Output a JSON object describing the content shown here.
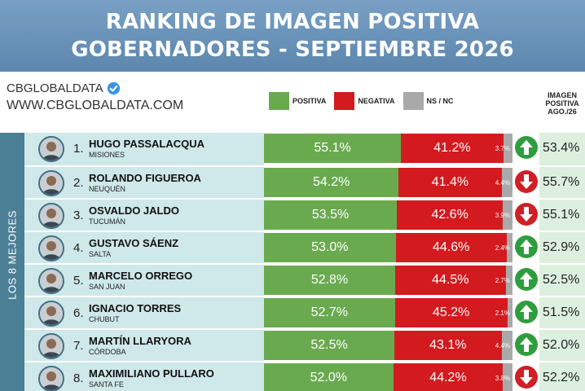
{
  "header": {
    "title_line1": "RANKING DE IMAGEN POSITIVA",
    "title_line2": "GOBERNADORES - SEPTIEMBRE 2026"
  },
  "brand": {
    "name": "CBGLOBALDATA",
    "url": "WWW.CBGLOBALDATA.COM",
    "verified_icon": "verified-badge-icon"
  },
  "legend": {
    "positive": "POSITIVA",
    "negative": "NEGATIVA",
    "nsnc": "NS / NC"
  },
  "prev_header": {
    "line1": "IMAGEN",
    "line2": "POSITIVA",
    "line3": "AGO./26"
  },
  "side_label": "LOS 8 MEJORES",
  "colors": {
    "positive": "#6aaa4f",
    "negative": "#d31a1f",
    "nsnc": "#a9a9a9",
    "trend_up": "#2e9d3e",
    "trend_down": "#d01f25"
  },
  "chart_data": {
    "type": "bar",
    "stacked": true,
    "orientation": "horizontal",
    "title": "RANKING DE IMAGEN POSITIVA GOBERNADORES - SEPTIEMBRE 2026",
    "categories": [
      "HUGO PASSALACQUA",
      "ROLANDO FIGUEROA",
      "OSVALDO JALDO",
      "GUSTAVO SÁENZ",
      "MARCELO ORREGO",
      "IGNACIO TORRES",
      "MARTÍN LLARYORA",
      "MAXIMILIANO PULLARO"
    ],
    "series": [
      {
        "name": "POSITIVA",
        "values": [
          55.1,
          54.2,
          53.5,
          53.0,
          52.8,
          52.7,
          52.5,
          52.0
        ]
      },
      {
        "name": "NEGATIVA",
        "values": [
          41.2,
          41.4,
          42.6,
          44.6,
          44.5,
          45.2,
          43.1,
          44.2
        ]
      },
      {
        "name": "NS / NC",
        "values": [
          3.7,
          4.4,
          3.9,
          2.4,
          2.7,
          2.1,
          4.4,
          3.8
        ]
      }
    ],
    "rows": [
      {
        "rank": "1.",
        "name": "HUGO PASSALACQUA",
        "province": "MISIONES",
        "positive": 55.1,
        "negative": 41.2,
        "nsnc": 3.7,
        "positive_label": "55.1%",
        "negative_label": "41.2%",
        "nsnc_label": "3.7%",
        "trend": "up",
        "prev_label": "53.4%",
        "prev": 53.4
      },
      {
        "rank": "2.",
        "name": "ROLANDO FIGUEROA",
        "province": "NEUQUÉN",
        "positive": 54.2,
        "negative": 41.4,
        "nsnc": 4.4,
        "positive_label": "54.2%",
        "negative_label": "41.4%",
        "nsnc_label": "4.4%",
        "trend": "down",
        "prev_label": "55.7%",
        "prev": 55.7
      },
      {
        "rank": "3.",
        "name": "OSVALDO JALDO",
        "province": "TUCUMÁN",
        "positive": 53.5,
        "negative": 42.6,
        "nsnc": 3.9,
        "positive_label": "53.5%",
        "negative_label": "42.6%",
        "nsnc_label": "3.9%",
        "trend": "down",
        "prev_label": "55.1%",
        "prev": 55.1
      },
      {
        "rank": "4.",
        "name": "GUSTAVO SÁENZ",
        "province": "SALTA",
        "positive": 53.0,
        "negative": 44.6,
        "nsnc": 2.4,
        "positive_label": "53.0%",
        "negative_label": "44.6%",
        "nsnc_label": "2.4%",
        "trend": "up",
        "prev_label": "52.9%",
        "prev": 52.9
      },
      {
        "rank": "5.",
        "name": "MARCELO ORREGO",
        "province": "SAN JUAN",
        "positive": 52.8,
        "negative": 44.5,
        "nsnc": 2.7,
        "positive_label": "52.8%",
        "negative_label": "44.5%",
        "nsnc_label": "2.7%",
        "trend": "up",
        "prev_label": "52.5%",
        "prev": 52.5
      },
      {
        "rank": "6.",
        "name": "IGNACIO TORRES",
        "province": "CHUBUT",
        "positive": 52.7,
        "negative": 45.2,
        "nsnc": 2.1,
        "positive_label": "52.7%",
        "negative_label": "45.2%",
        "nsnc_label": "2.1%",
        "trend": "up",
        "prev_label": "51.5%",
        "prev": 51.5
      },
      {
        "rank": "7.",
        "name": "MARTÍN LLARYORA",
        "province": "CÓRDOBA",
        "positive": 52.5,
        "negative": 43.1,
        "nsnc": 4.4,
        "positive_label": "52.5%",
        "negative_label": "43.1%",
        "nsnc_label": "4.4%",
        "trend": "up",
        "prev_label": "52.0%",
        "prev": 52.0
      },
      {
        "rank": "8.",
        "name": "MAXIMILIANO PULLARO",
        "province": "SANTA FE",
        "positive": 52.0,
        "negative": 44.2,
        "nsnc": 3.8,
        "positive_label": "52.0%",
        "negative_label": "44.2%",
        "nsnc_label": "3.8%",
        "trend": "down",
        "prev_label": "52.2%",
        "prev": 52.2
      }
    ]
  }
}
